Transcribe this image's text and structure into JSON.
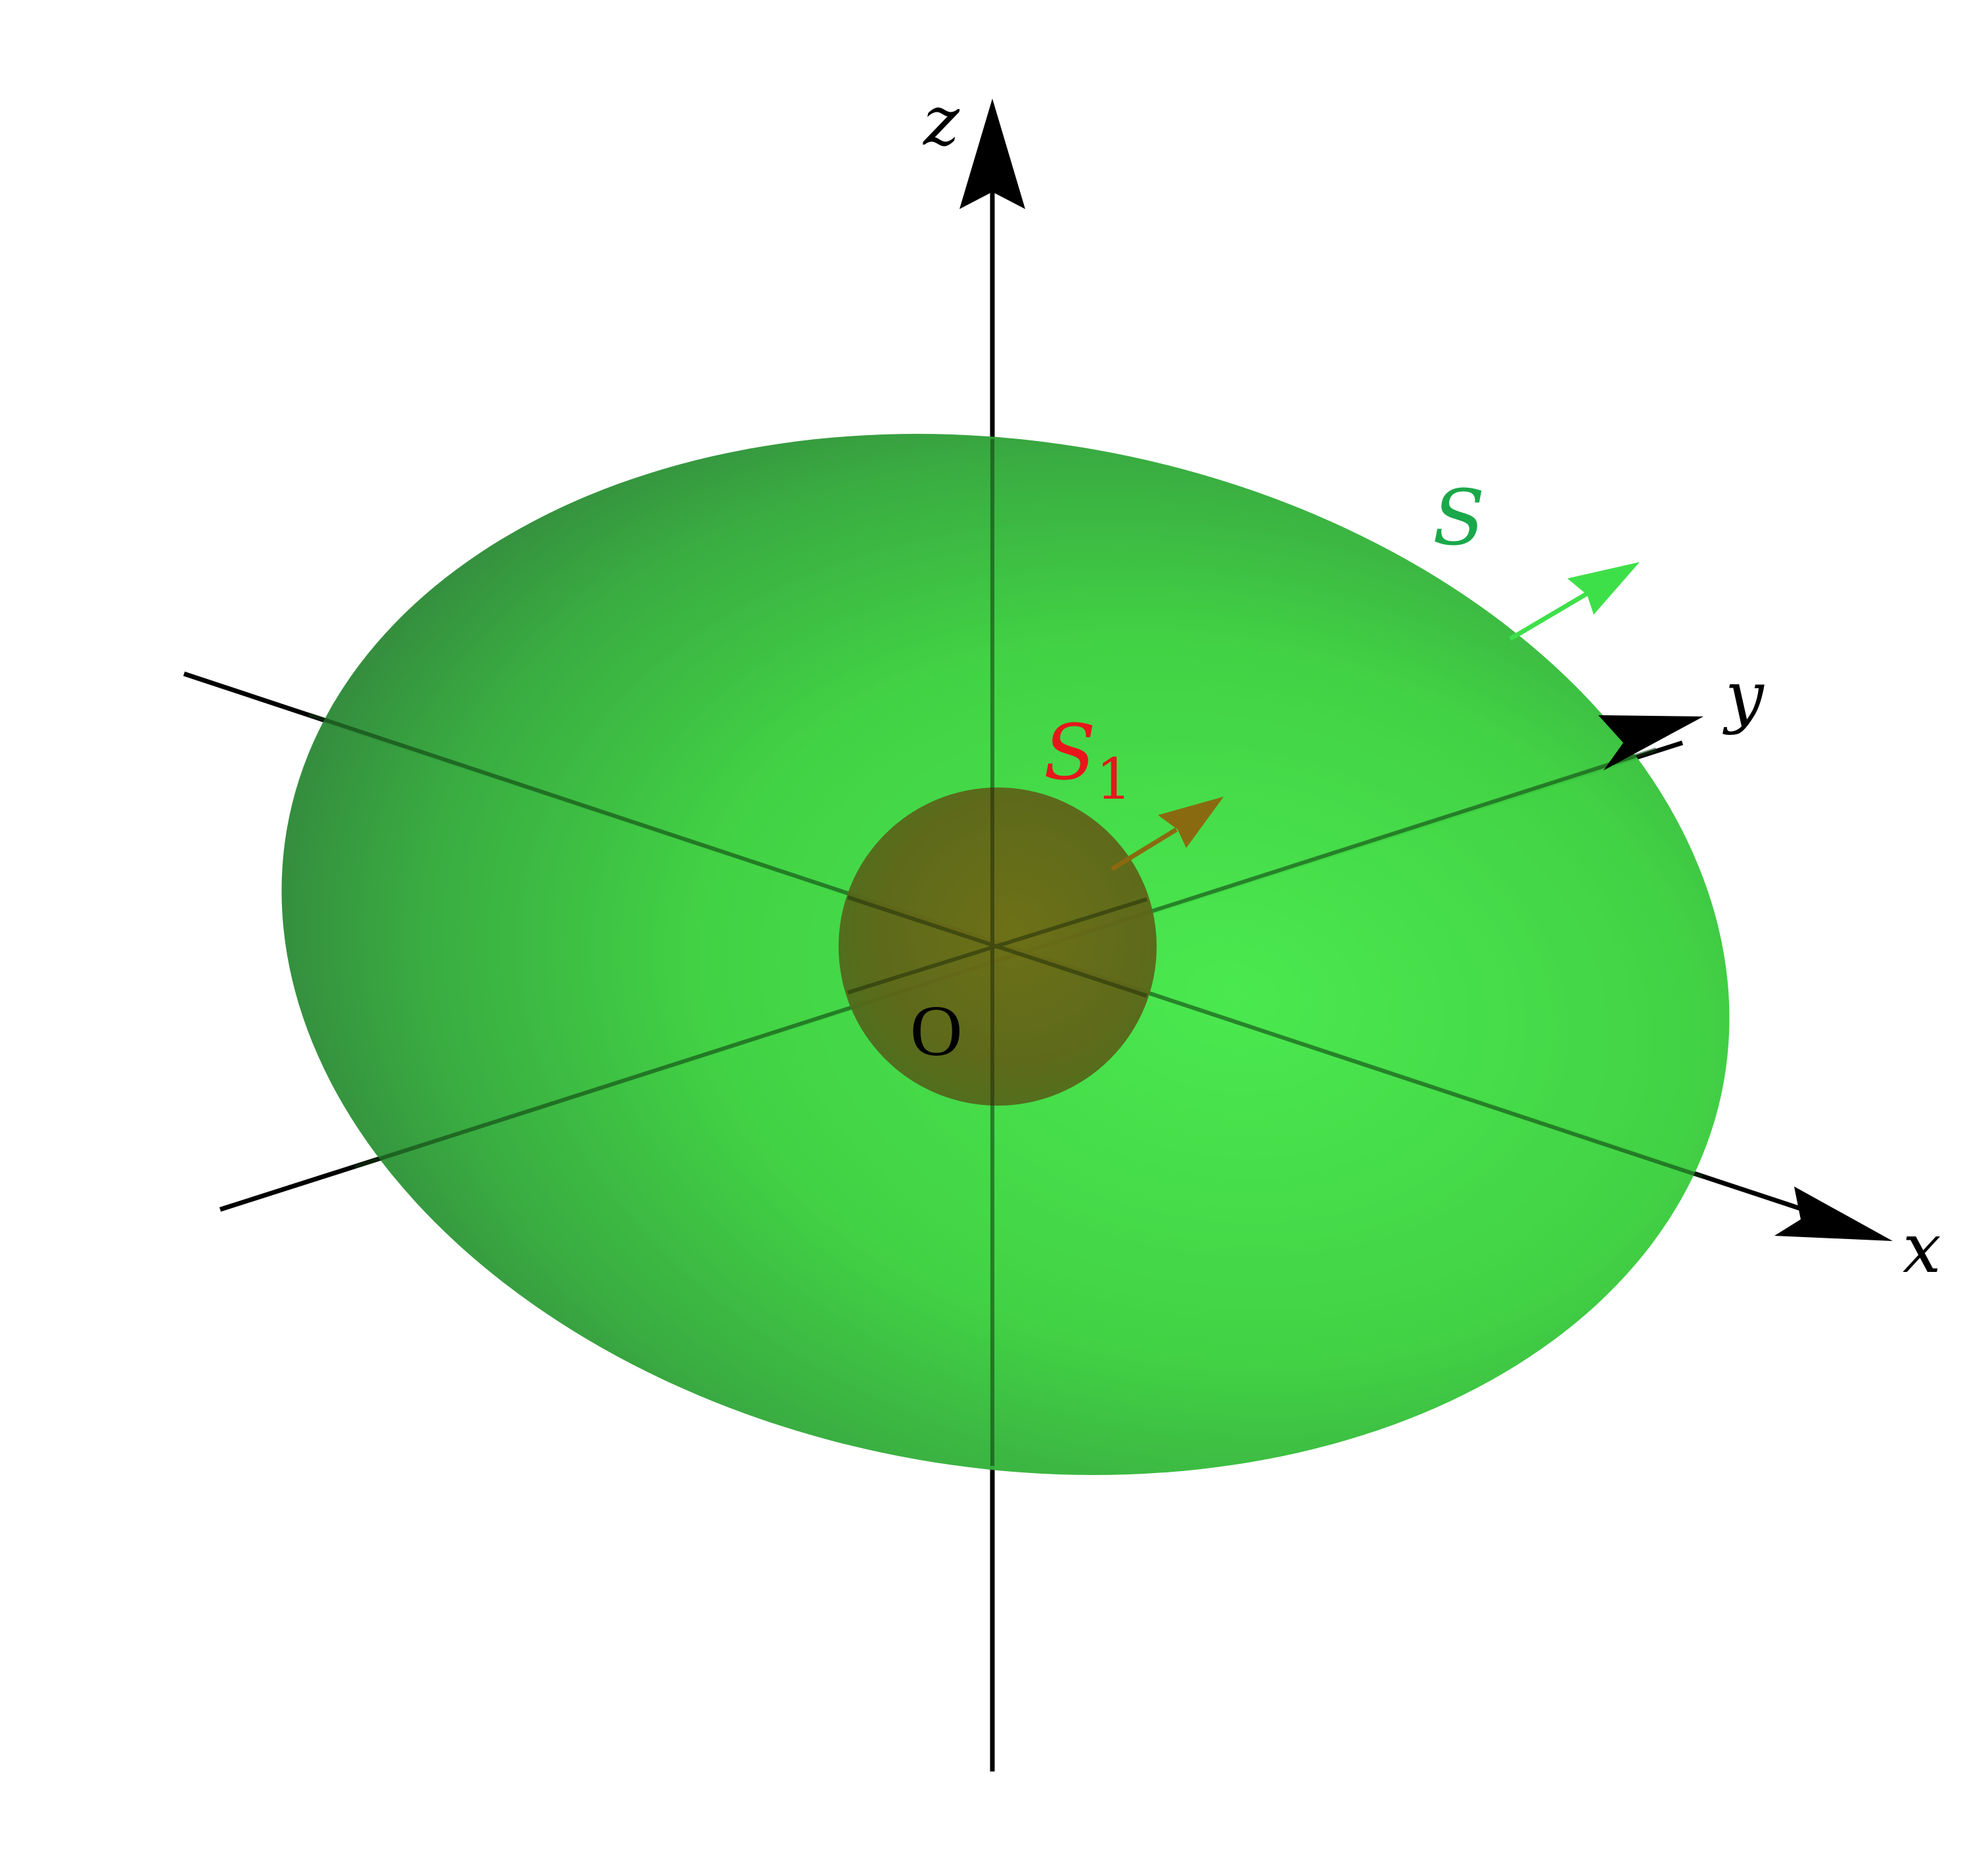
{
  "figure": {
    "labels": {
      "z_axis": "z",
      "y_axis": "y",
      "x_axis": "x",
      "origin": "O",
      "outer_surface": "S",
      "inner_surface_main": "S",
      "inner_surface_sub": "1"
    },
    "colors": {
      "axis": "#000000",
      "outer_surface_fill": "#3ccf3c",
      "outer_surface_edge": "#2f8a3a",
      "inner_sphere_fill": "#6b6a1a",
      "outer_label": "#1aa84a",
      "inner_label": "#e8161b",
      "outer_normal_arrow": "#3ee04a",
      "inner_normal_arrow": "#8a6a10"
    }
  }
}
